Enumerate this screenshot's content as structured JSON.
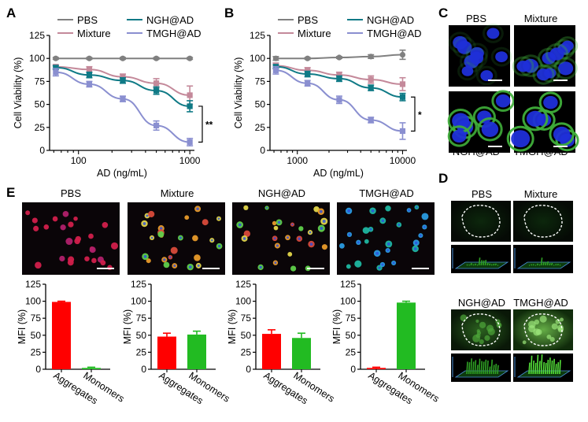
{
  "panel_letters": {
    "A": "A",
    "B": "B",
    "C": "C",
    "D": "D",
    "E": "E"
  },
  "colors": {
    "PBS": "#808080",
    "Mixture": "#c4899a",
    "NGH@AD": "#0f7a86",
    "TMGH@AD": "#8a8fd0",
    "aggregates": "#ff0000",
    "monomers": "#22bb22"
  },
  "chart_data": [
    {
      "id": "A",
      "type": "line",
      "xscale": "log",
      "xlabel": "AD (ng/mL)",
      "ylabel": "Cell Viability (%)",
      "xlim": [
        55,
        1100
      ],
      "ylim": [
        0,
        125
      ],
      "x_tick_labels": [
        "100",
        "1000"
      ],
      "y_ticks": [
        0,
        25,
        50,
        75,
        100,
        125
      ],
      "x": [
        62.5,
        125,
        250,
        500,
        1000
      ],
      "series": [
        {
          "name": "PBS",
          "values": [
            100,
            100,
            100,
            100,
            100
          ],
          "err": [
            1,
            1,
            1,
            1,
            1
          ]
        },
        {
          "name": "Mixture",
          "values": [
            91,
            88,
            80,
            73,
            60
          ],
          "err": [
            2,
            3,
            3,
            5,
            10
          ]
        },
        {
          "name": "NGH@AD",
          "values": [
            90,
            82,
            76,
            65,
            48
          ],
          "err": [
            2,
            3,
            3,
            4,
            6
          ]
        },
        {
          "name": "TMGH@AD",
          "values": [
            85,
            72,
            56,
            27,
            9
          ],
          "err": [
            4,
            3,
            3,
            5,
            4
          ]
        }
      ],
      "significance": "**"
    },
    {
      "id": "B",
      "type": "line",
      "xscale": "log",
      "xlabel": "AD (ng/mL)",
      "ylabel": "Cell Viability (%)",
      "xlim": [
        550,
        11000
      ],
      "ylim": [
        0,
        125
      ],
      "x_tick_labels": [
        "1000",
        "10000"
      ],
      "y_ticks": [
        0,
        25,
        50,
        75,
        100,
        125
      ],
      "x": [
        625,
        1250,
        2500,
        5000,
        10000
      ],
      "series": [
        {
          "name": "PBS",
          "values": [
            100,
            100,
            101,
            102,
            104
          ],
          "err": [
            2,
            1,
            1,
            2,
            5
          ]
        },
        {
          "name": "Mixture",
          "values": [
            92,
            87,
            82,
            77,
            72
          ],
          "err": [
            3,
            3,
            3,
            4,
            7
          ]
        },
        {
          "name": "NGH@AD",
          "values": [
            91,
            83,
            78,
            68,
            58
          ],
          "err": [
            2,
            3,
            3,
            3,
            4
          ]
        },
        {
          "name": "TMGH@AD",
          "values": [
            87,
            73,
            55,
            33,
            21
          ],
          "err": [
            4,
            3,
            4,
            3,
            9
          ]
        }
      ],
      "significance": "*"
    },
    {
      "id": "E-PBS",
      "type": "bar",
      "ylabel": "MFI (%)",
      "ylim": [
        0,
        125
      ],
      "y_ticks": [
        0,
        25,
        50,
        75,
        100,
        125
      ],
      "categories": [
        "Aggregates",
        "Monomers"
      ],
      "values": [
        99,
        2
      ],
      "err": [
        1,
        1
      ]
    },
    {
      "id": "E-Mixture",
      "type": "bar",
      "ylabel": "MFI (%)",
      "ylim": [
        0,
        125
      ],
      "y_ticks": [
        0,
        25,
        50,
        75,
        100,
        125
      ],
      "categories": [
        "Aggregates",
        "Monomers"
      ],
      "values": [
        48,
        51
      ],
      "err": [
        5,
        5
      ]
    },
    {
      "id": "E-NGH@AD",
      "type": "bar",
      "ylabel": "MFI (%)",
      "ylim": [
        0,
        125
      ],
      "y_ticks": [
        0,
        25,
        50,
        75,
        100,
        125
      ],
      "categories": [
        "Aggregates",
        "Monomers"
      ],
      "values": [
        52,
        46
      ],
      "err": [
        6,
        7
      ]
    },
    {
      "id": "E-TMGH@AD",
      "type": "bar",
      "ylabel": "MFI (%)",
      "ylim": [
        0,
        125
      ],
      "y_ticks": [
        0,
        25,
        50,
        75,
        100,
        125
      ],
      "categories": [
        "Aggregates",
        "Monomers"
      ],
      "values": [
        2,
        98
      ],
      "err": [
        1,
        2
      ]
    }
  ],
  "legend": [
    "PBS",
    "Mixture",
    "NGH@AD",
    "TMGH@AD"
  ],
  "panelC": {
    "labels": [
      "PBS",
      "Mixture",
      "NGH@AD",
      "TMGH@AD"
    ]
  },
  "panelD": {
    "labels": [
      "PBS",
      "Mixture",
      "NGH@AD",
      "TMGH@AD"
    ]
  },
  "panelE": {
    "titles": [
      "PBS",
      "Mixture",
      "NGH@AD",
      "TMGH@AD"
    ]
  }
}
